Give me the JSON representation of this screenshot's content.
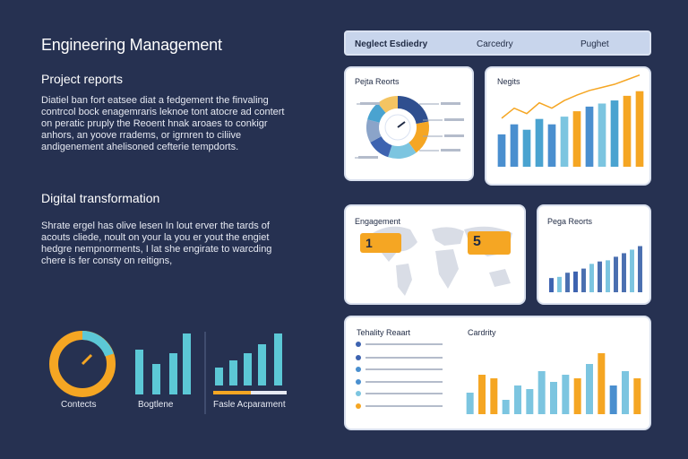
{
  "header": {
    "title": "Engineering Management"
  },
  "project_reports": {
    "title": "Project reports",
    "text": "Diatiel ban fort eatsee diat a fedgement the finvaling contrcol bock enagemraris leknoe tont atocre ad contert on peratic pruply the Reoent hnak aroaes to conkigr anhors, an yoove rradems, or igrnren to ciliive andigenement ahelisoned cefterie tempdorts."
  },
  "digital_transformation": {
    "title": "Digital transformation",
    "text": "Shrate ergel has olive lesen In lout erver the tards of acouts cliede, noult on your la you er yout the engiet hedgre nempnorments, I lat she engirate to warcding chere is fer consty on reitigns,"
  },
  "mini_widgets": [
    {
      "label": "Contects",
      "icon": "gauge-icon"
    },
    {
      "label": "Bogtlene",
      "icon": "bar-chart-icon"
    },
    {
      "label": "Fasle Acparament",
      "icon": "bar-chart-icon"
    }
  ],
  "tabs": [
    "Neglect Esdiedry",
    "Carcedry",
    "Pughet"
  ],
  "cards": {
    "project_reports_title": "Pejta Reorts",
    "negits_title": "Negits",
    "engagement_title": "Engagement",
    "pega_reports_title": "Pega Reorts",
    "tehality_title": "Tehality Reaart",
    "cardity_title": "Cardrity",
    "badge_one": "1",
    "badge_five": "5"
  },
  "chart_data": [
    {
      "type": "pie",
      "title": "Pejta Reorts",
      "values": [
        22,
        18,
        15,
        12,
        12,
        10,
        11
      ],
      "colors": [
        "#2f4f8f",
        "#f5a623",
        "#7cc5e0",
        "#3d63b0",
        "#8ba4c9",
        "#4aa3d0",
        "#f4c462"
      ]
    },
    {
      "type": "bar",
      "title": "Negits",
      "values": [
        42,
        55,
        48,
        62,
        55,
        65,
        72,
        78,
        82,
        86,
        92,
        98
      ],
      "colors": [
        "#4a8fcf",
        "#4a8fcf",
        "#4aa3d0",
        "#4aa3d0",
        "#4a8fcf",
        "#7cc5e0",
        "#f5a623",
        "#4a8fcf",
        "#7cc5e0",
        "#4aa3d0",
        "#f5a623",
        "#f5a623"
      ],
      "ylim": [
        0,
        100
      ]
    },
    {
      "type": "bar",
      "title": "Pega Reorts",
      "values": [
        24,
        26,
        33,
        35,
        40,
        48,
        52,
        54,
        60,
        66,
        72,
        78
      ],
      "colors": [
        "#3d63b0",
        "#7cc5e0",
        "#4a6fb0",
        "#3d63b0",
        "#4a6fb0",
        "#7cc5e0",
        "#4a6fb0",
        "#7cc5e0",
        "#4a6fb0",
        "#4a6fb0",
        "#7cc5e0",
        "#4a6fb0"
      ],
      "ylim": [
        0,
        100
      ]
    },
    {
      "type": "bar",
      "title": "Cardrity",
      "values": [
        30,
        55,
        50,
        20,
        40,
        35,
        60,
        45,
        55,
        50,
        70,
        85,
        40,
        60,
        50
      ],
      "colors": [
        "#7cc5e0",
        "#f5a623",
        "#f5a623",
        "#7cc5e0",
        "#7cc5e0",
        "#7cc5e0",
        "#7cc5e0",
        "#7cc5e0",
        "#7cc5e0",
        "#f5a623",
        "#7cc5e0",
        "#f5a623",
        "#4a8fcf",
        "#7cc5e0",
        "#f5a623"
      ],
      "ylim": [
        0,
        100
      ]
    }
  ]
}
